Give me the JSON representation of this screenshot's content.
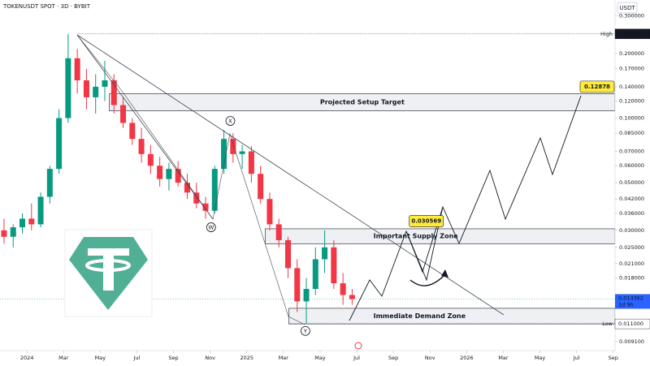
{
  "chart_data": {
    "type": "candlestick",
    "title": "TOKENUSDT SPOT · 3D · BYBIT",
    "currency": "USDT",
    "log_scale": true,
    "xlim": [
      -1.47,
      32.1
    ],
    "xticks": [
      {
        "value": 0,
        "label": "2024"
      },
      {
        "value": 2,
        "label": "Mar"
      },
      {
        "value": 4,
        "label": "May"
      },
      {
        "value": 6,
        "label": "Jul"
      },
      {
        "value": 8,
        "label": "Sep"
      },
      {
        "value": 10,
        "label": "Nov"
      },
      {
        "value": 12,
        "label": "2025"
      },
      {
        "value": 14,
        "label": "Mar"
      },
      {
        "value": 16,
        "label": "May"
      },
      {
        "value": 18,
        "label": "Jul"
      },
      {
        "value": 20,
        "label": "Sep"
      },
      {
        "value": 22,
        "label": "Nov"
      },
      {
        "value": 24,
        "label": "2026"
      },
      {
        "value": 26,
        "label": "Mar"
      },
      {
        "value": 28,
        "label": "May"
      },
      {
        "value": 30,
        "label": "Jul"
      },
      {
        "value": 32,
        "label": "Sep"
      }
    ],
    "ylim": [
      0.00826,
      0.355
    ],
    "yticks": [
      {
        "value": 0.3,
        "label": "0.300000"
      },
      {
        "value": 0.2,
        "label": "0.200000"
      },
      {
        "value": 0.17,
        "label": "0.170000"
      },
      {
        "value": 0.14,
        "label": "0.140000"
      },
      {
        "value": 0.12,
        "label": "0.120000"
      },
      {
        "value": 0.1,
        "label": "0.100000"
      },
      {
        "value": 0.085,
        "label": "0.085000"
      },
      {
        "value": 0.07,
        "label": "0.070000"
      },
      {
        "value": 0.06,
        "label": "0.060000"
      },
      {
        "value": 0.05,
        "label": "0.050000"
      },
      {
        "value": 0.042,
        "label": "0.042000"
      },
      {
        "value": 0.036,
        "label": "0.036000"
      },
      {
        "value": 0.03,
        "label": "0.030000"
      },
      {
        "value": 0.025,
        "label": "0.025000"
      },
      {
        "value": 0.021,
        "label": "0.021000"
      },
      {
        "value": 0.018,
        "label": "0.018000"
      },
      {
        "value": 0.0091,
        "label": "0.009100"
      }
    ],
    "up_color": "#089981",
    "down_color": "#f23645",
    "x": [
      -1.25,
      -0.75,
      -0.25,
      0.25,
      0.75,
      1.25,
      1.75,
      2.25,
      2.75,
      3.25,
      3.75,
      4.25,
      4.75,
      5.25,
      5.75,
      6.25,
      6.75,
      7.25,
      7.75,
      8.25,
      8.75,
      9.25,
      9.75,
      10.25,
      10.75,
      11.25,
      11.75,
      12.25,
      12.75,
      13.25,
      13.75,
      14.25,
      14.75,
      15.25,
      15.75,
      16.25,
      16.75,
      17.25,
      17.75
    ],
    "open": [
      0.03,
      0.028,
      0.031,
      0.034,
      0.032,
      0.043,
      0.058,
      0.1,
      0.19,
      0.15,
      0.125,
      0.14,
      0.15,
      0.115,
      0.095,
      0.08,
      0.068,
      0.06,
      0.052,
      0.058,
      0.05,
      0.045,
      0.04,
      0.037,
      0.058,
      0.08,
      0.068,
      0.07,
      0.055,
      0.042,
      0.032,
      0.027,
      0.02,
      0.014,
      0.016,
      0.022,
      0.025,
      0.017,
      0.015
    ],
    "high": [
      0.034,
      0.032,
      0.036,
      0.04,
      0.045,
      0.06,
      0.11,
      0.24676,
      0.21,
      0.17,
      0.16,
      0.185,
      0.16,
      0.125,
      0.1,
      0.09,
      0.075,
      0.066,
      0.062,
      0.063,
      0.055,
      0.05,
      0.043,
      0.06,
      0.088,
      0.085,
      0.075,
      0.074,
      0.06,
      0.045,
      0.034,
      0.028,
      0.022,
      0.018,
      0.025,
      0.03,
      0.027,
      0.019,
      0.016
    ],
    "low": [
      0.026,
      0.025,
      0.029,
      0.03,
      0.031,
      0.04,
      0.055,
      0.095,
      0.13,
      0.11,
      0.105,
      0.12,
      0.105,
      0.09,
      0.075,
      0.062,
      0.055,
      0.048,
      0.046,
      0.048,
      0.042,
      0.038,
      0.034,
      0.036,
      0.055,
      0.062,
      0.058,
      0.05,
      0.04,
      0.03,
      0.025,
      0.018,
      0.0125,
      0.011,
      0.015,
      0.019,
      0.016,
      0.0135,
      0.0135
    ],
    "close": [
      0.028,
      0.031,
      0.034,
      0.032,
      0.043,
      0.058,
      0.1,
      0.19,
      0.15,
      0.125,
      0.14,
      0.15,
      0.115,
      0.095,
      0.08,
      0.068,
      0.06,
      0.052,
      0.058,
      0.05,
      0.045,
      0.04,
      0.037,
      0.058,
      0.08,
      0.068,
      0.07,
      0.055,
      0.042,
      0.032,
      0.027,
      0.02,
      0.014,
      0.016,
      0.022,
      0.025,
      0.017,
      0.015,
      0.014362
    ],
    "high_marker": {
      "name": "High",
      "value": 0.24676,
      "label": "0.246760"
    },
    "low_marker": {
      "name": "Low",
      "value": 0.011,
      "label": "0.011000"
    },
    "last_price": {
      "value": 0.014362,
      "label": "0.014362",
      "countdown": "1d 9h"
    },
    "zones": [
      {
        "name": "Projected Setup Target",
        "x": 4.5,
        "low": 0.108,
        "high": 0.13,
        "color": "#e0e3eb",
        "text_color": "#f23645"
      },
      {
        "name": "Important Supply Zone",
        "x": 13,
        "low": 0.026,
        "high": 0.0305,
        "color": "#e0e3eb",
        "text_color": "#f23645"
      },
      {
        "name": "Immediate Demand Zone",
        "x": 14.3,
        "low": 0.011,
        "high": 0.013,
        "color": "#e0e3eb",
        "text_color": "#131722"
      }
    ],
    "callouts": [
      {
        "label": "0.030569",
        "x": 21.8,
        "value": 0.0331
      },
      {
        "label": "0.12878",
        "x": 31.9,
        "value": 0.14
      }
    ],
    "waves": [
      {
        "label": "W",
        "x": 10.05,
        "value": 0.031
      },
      {
        "label": "X",
        "x": 11.1,
        "value": 0.097
      },
      {
        "label": "Y",
        "x": 15.2,
        "value": 0.0102
      }
    ]
  }
}
